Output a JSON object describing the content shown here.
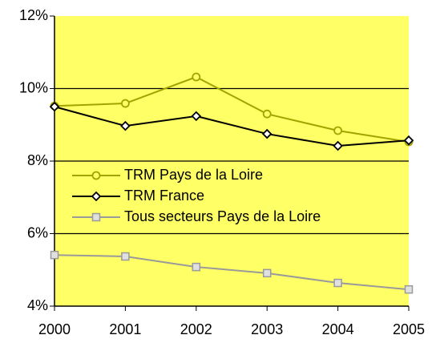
{
  "chart_data": {
    "type": "line",
    "categories": [
      "2000",
      "2001",
      "2002",
      "2003",
      "2004",
      "2005"
    ],
    "series": [
      {
        "name": "TRM Pays de la Loire",
        "color": "#a3a300",
        "marker": "circle",
        "values": [
          9.52,
          9.59,
          10.32,
          9.3,
          8.84,
          8.53
        ]
      },
      {
        "name": "TRM France",
        "color": "#000000",
        "marker": "diamond",
        "values": [
          9.5,
          8.97,
          9.24,
          8.75,
          8.42,
          8.57
        ]
      },
      {
        "name": "Tous secteurs Pays de la Loire",
        "color": "#9a9a9a",
        "marker": "square",
        "values": [
          5.41,
          5.37,
          5.08,
          4.91,
          4.64,
          4.46
        ]
      }
    ],
    "ylim": [
      4,
      12
    ],
    "yticks": [
      {
        "value": 4,
        "label": "4%"
      },
      {
        "value": 6,
        "label": "6%"
      },
      {
        "value": 8,
        "label": "8%"
      },
      {
        "value": 10,
        "label": "10%"
      },
      {
        "value": 12,
        "label": "12%"
      }
    ],
    "grid": true,
    "plot_background": "#ffff66",
    "legend": "left"
  }
}
